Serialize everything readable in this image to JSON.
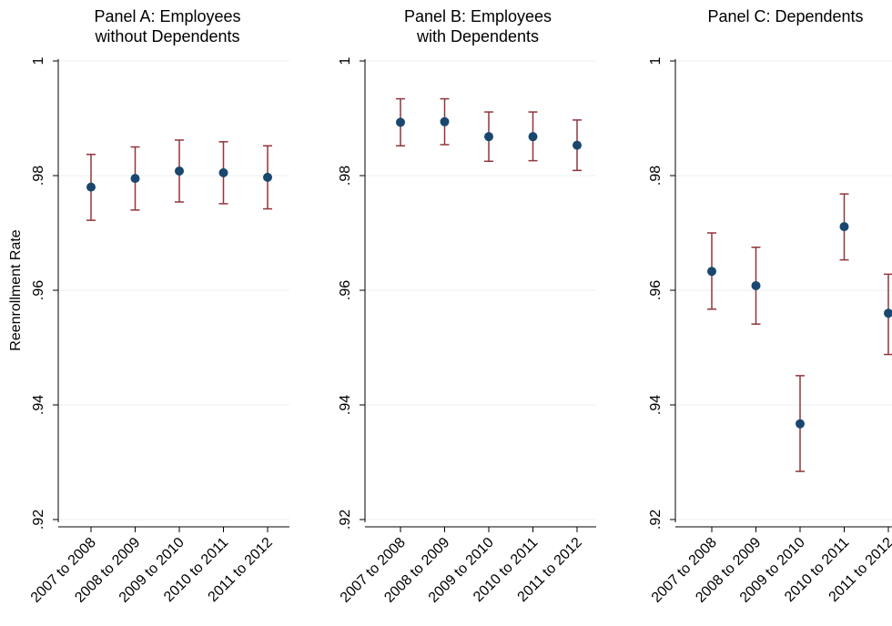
{
  "chart_data": [
    {
      "type": "scatter",
      "title": [
        "Panel A: Employees",
        "without Dependents"
      ],
      "ylabel": "Reenrollment Rate",
      "categories": [
        "2007 to 2008",
        "2008 to 2009",
        "2009 to 2010",
        "2010 to 2011",
        "2011 to 2012"
      ],
      "values": [
        0.978,
        0.9795,
        0.9808,
        0.9805,
        0.9797
      ],
      "ci_low": [
        0.9722,
        0.974,
        0.9754,
        0.9751,
        0.9742
      ],
      "ci_high": [
        0.9837,
        0.985,
        0.9862,
        0.9859,
        0.9852
      ],
      "ylim": [
        0.92,
        1.0
      ],
      "yticks": [
        0.92,
        0.94,
        0.96,
        0.98,
        1.0
      ],
      "ytick_labels": [
        ".92",
        ".94",
        ".96",
        ".98",
        "1"
      ],
      "grid": true,
      "point_color": "#1a476f",
      "ci_color": "#90353b"
    },
    {
      "type": "scatter",
      "title": [
        "Panel B: Employees",
        "with Dependents"
      ],
      "ylabel": "",
      "categories": [
        "2007 to 2008",
        "2008 to 2009",
        "2009 to 2010",
        "2010 to 2011",
        "2011 to 2012"
      ],
      "values": [
        0.9893,
        0.9894,
        0.9868,
        0.9868,
        0.9853
      ],
      "ci_low": [
        0.9852,
        0.9854,
        0.9825,
        0.9826,
        0.9809
      ],
      "ci_high": [
        0.9934,
        0.9934,
        0.9911,
        0.9911,
        0.9897
      ],
      "ylim": [
        0.92,
        1.0
      ],
      "yticks": [
        0.92,
        0.94,
        0.96,
        0.98,
        1.0
      ],
      "ytick_labels": [
        ".92",
        ".94",
        ".96",
        ".98",
        "1"
      ],
      "grid": true,
      "point_color": "#1a476f",
      "ci_color": "#90353b"
    },
    {
      "type": "scatter",
      "title": [
        "Panel C: Dependents"
      ],
      "ylabel": "",
      "categories": [
        "2007 to 2008",
        "2008 to 2009",
        "2009 to 2010",
        "2010 to 2011",
        "2011 to 2012"
      ],
      "values": [
        0.9633,
        0.9608,
        0.9367,
        0.9711,
        0.956
      ],
      "ci_low": [
        0.9567,
        0.9541,
        0.9284,
        0.9653,
        0.9488
      ],
      "ci_high": [
        0.97,
        0.9675,
        0.9451,
        0.9768,
        0.9628
      ],
      "ylim": [
        0.92,
        1.0
      ],
      "yticks": [
        0.92,
        0.94,
        0.96,
        0.98,
        1.0
      ],
      "ytick_labels": [
        ".92",
        ".94",
        ".96",
        ".98",
        "1"
      ],
      "grid": true,
      "point_color": "#1a476f",
      "ci_color": "#90353b"
    }
  ]
}
